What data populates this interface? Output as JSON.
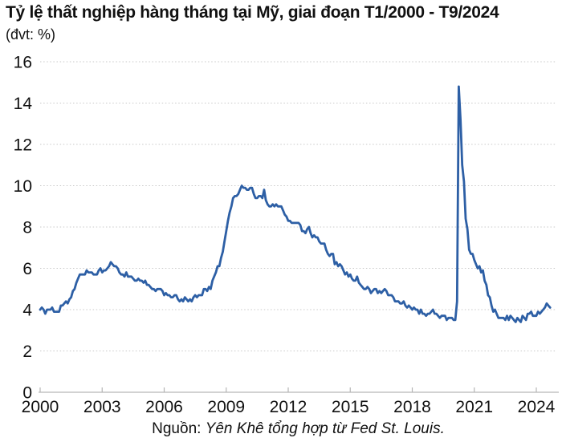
{
  "source": {
    "prefix": "Nguồn: ",
    "text": "Yên Khê tổng hợp từ Fed St. Louis."
  },
  "chart_data": {
    "type": "line",
    "title": "Tỷ lệ thất nghiệp hàng tháng tại Mỹ, giai đoạn T1/2000 - T9/2024",
    "unit_label": "(đvt: %)",
    "unit": "%",
    "xlabel": "",
    "ylabel": "",
    "ylim": [
      0,
      16
    ],
    "yticks": [
      0,
      2,
      4,
      6,
      8,
      10,
      12,
      14,
      16
    ],
    "xticks": [
      2000,
      2003,
      2006,
      2009,
      2012,
      2015,
      2018,
      2021,
      2024
    ],
    "x_start": "2000-01",
    "x_end": "2024-09",
    "frequency": "monthly",
    "grid": "dotted-horizontal",
    "legend": "none",
    "line_color": "#2d5fa5",
    "grid_color": "#c9c9c9",
    "axis_color": "#c4c4c4",
    "tick_color": "#b5b5b5",
    "text_color": "#111111",
    "series": [
      {
        "name": "unemployment-rate-percent",
        "values": [
          4.0,
          4.1,
          4.0,
          3.8,
          4.0,
          4.0,
          4.0,
          4.1,
          3.9,
          3.9,
          3.9,
          3.9,
          4.2,
          4.2,
          4.3,
          4.4,
          4.3,
          4.5,
          4.6,
          4.9,
          5.0,
          5.3,
          5.5,
          5.7,
          5.7,
          5.7,
          5.7,
          5.9,
          5.8,
          5.8,
          5.8,
          5.7,
          5.7,
          5.7,
          5.9,
          6.0,
          5.8,
          5.9,
          5.9,
          6.0,
          6.1,
          6.3,
          6.2,
          6.1,
          6.1,
          6.0,
          5.8,
          5.7,
          5.7,
          5.6,
          5.8,
          5.6,
          5.6,
          5.6,
          5.5,
          5.4,
          5.4,
          5.5,
          5.4,
          5.4,
          5.3,
          5.4,
          5.2,
          5.2,
          5.1,
          5.0,
          5.0,
          4.9,
          5.0,
          5.0,
          5.0,
          4.9,
          4.7,
          4.8,
          4.7,
          4.7,
          4.6,
          4.6,
          4.7,
          4.7,
          4.5,
          4.4,
          4.5,
          4.4,
          4.6,
          4.5,
          4.4,
          4.5,
          4.4,
          4.6,
          4.7,
          4.6,
          4.7,
          4.7,
          4.7,
          5.0,
          5.0,
          4.9,
          5.1,
          5.0,
          5.4,
          5.6,
          5.8,
          6.1,
          6.1,
          6.5,
          6.8,
          7.3,
          7.8,
          8.3,
          8.7,
          9.0,
          9.4,
          9.5,
          9.5,
          9.6,
          9.8,
          10.0,
          9.9,
          9.9,
          9.8,
          9.8,
          9.9,
          9.9,
          9.6,
          9.4,
          9.4,
          9.5,
          9.5,
          9.4,
          9.8,
          9.3,
          9.1,
          9.0,
          9.0,
          9.1,
          9.0,
          9.1,
          9.0,
          9.0,
          9.0,
          8.8,
          8.6,
          8.5,
          8.3,
          8.3,
          8.2,
          8.2,
          8.2,
          8.2,
          8.2,
          8.1,
          7.8,
          7.8,
          7.7,
          7.9,
          8.0,
          7.7,
          7.5,
          7.6,
          7.5,
          7.5,
          7.3,
          7.2,
          7.2,
          7.2,
          6.9,
          6.7,
          6.6,
          6.7,
          6.7,
          6.2,
          6.3,
          6.1,
          6.2,
          6.1,
          5.9,
          5.7,
          5.8,
          5.6,
          5.7,
          5.5,
          5.4,
          5.4,
          5.6,
          5.3,
          5.2,
          5.1,
          5.0,
          5.0,
          5.1,
          5.0,
          4.8,
          4.9,
          5.0,
          5.0,
          4.8,
          4.9,
          4.8,
          4.9,
          5.0,
          4.9,
          4.7,
          4.7,
          4.7,
          4.6,
          4.4,
          4.4,
          4.4,
          4.3,
          4.3,
          4.4,
          4.2,
          4.1,
          4.2,
          4.1,
          4.0,
          4.1,
          4.0,
          4.0,
          3.8,
          4.0,
          3.8,
          3.8,
          3.7,
          3.8,
          3.8,
          3.9,
          4.0,
          3.8,
          3.8,
          3.7,
          3.6,
          3.7,
          3.7,
          3.7,
          3.5,
          3.6,
          3.6,
          3.6,
          3.5,
          3.5,
          4.4,
          14.8,
          13.2,
          11.0,
          10.2,
          8.4,
          7.9,
          6.9,
          6.7,
          6.7,
          6.4,
          6.2,
          6.0,
          6.1,
          5.8,
          5.9,
          5.4,
          5.2,
          4.7,
          4.6,
          4.2,
          3.9,
          4.0,
          3.8,
          3.6,
          3.6,
          3.6,
          3.6,
          3.5,
          3.7,
          3.5,
          3.7,
          3.6,
          3.5,
          3.4,
          3.6,
          3.5,
          3.4,
          3.7,
          3.6,
          3.5,
          3.8,
          3.8,
          3.9,
          3.7,
          3.7,
          3.7,
          3.9,
          3.8,
          3.9,
          4.0,
          4.1,
          4.3,
          4.2,
          4.1
        ]
      }
    ]
  }
}
